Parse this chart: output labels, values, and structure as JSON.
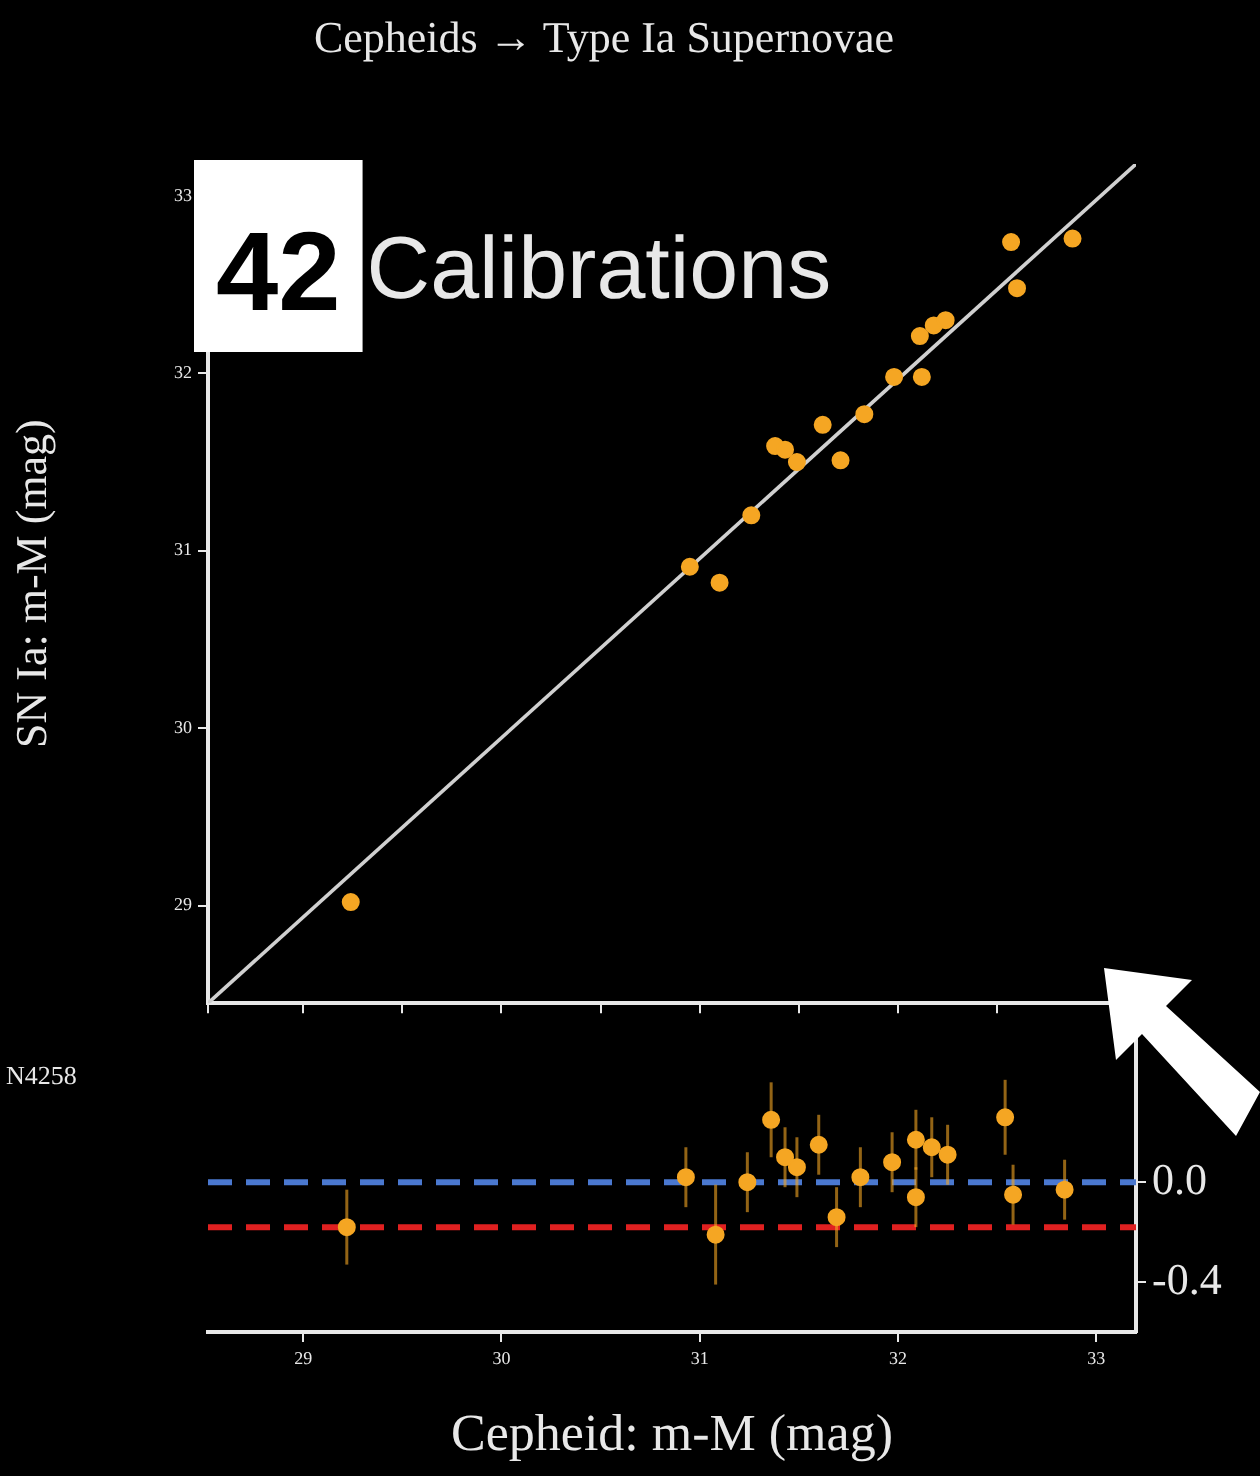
{
  "chart_data": [
    {
      "type": "scatter",
      "title": "Cepheids → Type Ia Supernovae",
      "ylabel": "SN Ia: m-M (mag)",
      "annotations": [
        "42",
        "Calibrations"
      ],
      "marker": "circle",
      "tick_labels": "y",
      "xlim": [
        28.52,
        33.2
      ],
      "ylim": [
        28.45,
        33.18
      ],
      "yticks": [
        29,
        30,
        31,
        32,
        33
      ],
      "series": [
        {
          "color": "#f5a623",
          "x": [
            29.24,
            30.95,
            31.1,
            31.26,
            31.38,
            31.43,
            31.49,
            31.62,
            31.71,
            31.83,
            31.98,
            32.11,
            32.12,
            32.18,
            32.24,
            32.57,
            32.6,
            32.88
          ],
          "values": [
            29.02,
            30.91,
            30.82,
            31.2,
            31.59,
            31.57,
            31.5,
            31.71,
            31.51,
            31.77,
            31.98,
            32.21,
            31.98,
            32.27,
            32.3,
            32.74,
            32.48,
            32.76
          ]
        },
        {
          "type": "line",
          "marker": "none",
          "color": "#d0d0d0",
          "x": [
            28.52,
            33.2
          ],
          "values": [
            28.45,
            33.18
          ]
        }
      ]
    },
    {
      "type": "scatter",
      "xlabel": "Cepheid: m-M (mag)",
      "annotations": [
        "N4258"
      ],
      "marker": "circle",
      "xlim": [
        28.52,
        33.2
      ],
      "xticks": [
        29,
        30,
        31,
        32,
        33
      ],
      "y2lim": [
        -0.6,
        0.6
      ],
      "y2ticks": [
        {
          "value": 0,
          "label": "0.0"
        },
        {
          "value": -0.4,
          "label": "-0.4"
        }
      ],
      "ref_lines": [
        {
          "axis": "y2",
          "value": 0,
          "color": "#4a78d0",
          "line_style": "dashed"
        },
        {
          "axis": "y2",
          "value": -0.18,
          "color": "#e02020",
          "line_style": "dashed"
        }
      ],
      "series": [
        {
          "axis": "y2",
          "color": "#f5a623",
          "x": [
            29.22,
            30.93,
            31.08,
            31.24,
            31.36,
            31.43,
            31.49,
            31.6,
            31.69,
            31.81,
            31.97,
            32.09,
            32.09,
            32.17,
            32.25,
            32.54,
            32.58,
            32.84
          ],
          "values": [
            -0.18,
            0.02,
            -0.21,
            0.0,
            0.25,
            0.1,
            0.06,
            0.15,
            -0.14,
            0.02,
            0.08,
            0.17,
            -0.06,
            0.14,
            0.11,
            0.26,
            -0.05,
            -0.03
          ],
          "errors": [
            0.15,
            0.12,
            0.2,
            0.12,
            0.15,
            0.12,
            0.12,
            0.12,
            0.12,
            0.12,
            0.12,
            0.12,
            0.12,
            0.12,
            0.12,
            0.15,
            0.12,
            0.12
          ]
        }
      ]
    }
  ]
}
